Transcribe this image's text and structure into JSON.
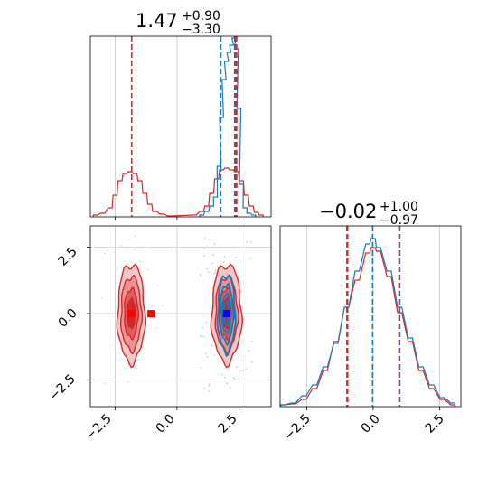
{
  "colors": {
    "series_a": "#1f77b4",
    "series_b": "#d62728",
    "grid": "#c8c8c8",
    "marker_a": "#0000ff",
    "marker_b": "#ff0000"
  },
  "titles": [
    {
      "median": "1.47",
      "upper": "+0.90",
      "lower": "−3.30"
    },
    {
      "median": "−0.02",
      "upper": "+1.00",
      "lower": "−0.97"
    }
  ],
  "chart_data": [
    {
      "type": "histogram",
      "panel": "param-1-marginal",
      "xlim": [
        -3.5,
        3.8
      ],
      "grid": true,
      "quantile_lines": {
        "series_a": [
          1.77,
          2.37
        ],
        "series_b": [
          -1.83,
          2.33,
          2.41
        ]
      },
      "series": [
        {
          "color_key": "series_a",
          "bins": [
            {
              "x": 1.0,
              "y": 0.01
            },
            {
              "x": 1.2,
              "y": 0.03
            },
            {
              "x": 1.4,
              "y": 0.06
            },
            {
              "x": 1.55,
              "y": 0.11
            },
            {
              "x": 1.7,
              "y": 0.28
            },
            {
              "x": 1.8,
              "y": 0.55
            },
            {
              "x": 1.9,
              "y": 0.76
            },
            {
              "x": 2.0,
              "y": 0.86
            },
            {
              "x": 2.1,
              "y": 0.91
            },
            {
              "x": 2.2,
              "y": 0.95
            },
            {
              "x": 2.3,
              "y": 0.99
            },
            {
              "x": 2.4,
              "y": 0.93
            },
            {
              "x": 2.5,
              "y": 0.6
            },
            {
              "x": 2.6,
              "y": 0.18
            },
            {
              "x": 2.75,
              "y": 0.05
            },
            {
              "x": 2.9,
              "y": 0.02
            },
            {
              "x": 3.1,
              "y": 0.01
            }
          ]
        },
        {
          "color_key": "series_b",
          "bins": [
            {
              "x": -3.3,
              "y": 0.01
            },
            {
              "x": -3.0,
              "y": 0.02
            },
            {
              "x": -2.7,
              "y": 0.05
            },
            {
              "x": -2.5,
              "y": 0.12
            },
            {
              "x": -2.3,
              "y": 0.2
            },
            {
              "x": -2.1,
              "y": 0.24
            },
            {
              "x": -1.9,
              "y": 0.25
            },
            {
              "x": -1.7,
              "y": 0.24
            },
            {
              "x": -1.5,
              "y": 0.2
            },
            {
              "x": -1.3,
              "y": 0.13
            },
            {
              "x": -1.1,
              "y": 0.07
            },
            {
              "x": -0.9,
              "y": 0.03
            },
            {
              "x": -0.6,
              "y": 0.015
            },
            {
              "x": -0.3,
              "y": 0.005
            },
            {
              "x": 0.7,
              "y": 0.01
            },
            {
              "x": 1.0,
              "y": 0.03
            },
            {
              "x": 1.2,
              "y": 0.06
            },
            {
              "x": 1.4,
              "y": 0.13
            },
            {
              "x": 1.6,
              "y": 0.21
            },
            {
              "x": 1.8,
              "y": 0.26
            },
            {
              "x": 2.0,
              "y": 0.27
            },
            {
              "x": 2.2,
              "y": 0.26
            },
            {
              "x": 2.4,
              "y": 0.25
            },
            {
              "x": 2.6,
              "y": 0.2
            },
            {
              "x": 2.8,
              "y": 0.12
            },
            {
              "x": 3.0,
              "y": 0.06
            },
            {
              "x": 3.2,
              "y": 0.025
            },
            {
              "x": 3.4,
              "y": 0.01
            }
          ]
        }
      ]
    },
    {
      "type": "contour",
      "panel": "param-1-vs-param-2",
      "xlim": [
        -3.5,
        3.8
      ],
      "ylim": [
        -3.5,
        3.3
      ],
      "xticks": [
        "−2.5",
        "0.0",
        "2.5"
      ],
      "yticks": [
        "−2.5",
        "0.0",
        "2.5"
      ],
      "grid": true,
      "series": [
        {
          "color_key": "series_a",
          "marker_key": "marker_a",
          "center": [
            2.0,
            0.0
          ],
          "spread": [
            0.35,
            1.45
          ],
          "levels": [
            1.0,
            0.75,
            0.5,
            0.3
          ]
        },
        {
          "color_key": "series_b",
          "marker_key": "marker_b",
          "center": [
            -1.85,
            0.0
          ],
          "spread": [
            0.55,
            1.85
          ],
          "levels": [
            1.0,
            0.75,
            0.5,
            0.3
          ]
        },
        {
          "color_key": "series_b",
          "marker_key": "marker_b",
          "center": [
            2.0,
            0.0
          ],
          "spread": [
            0.6,
            1.85
          ],
          "levels": [
            1.0,
            0.75,
            0.5,
            0.3
          ]
        }
      ],
      "extra_markers": [
        {
          "color_key": "marker_b",
          "x": -1.05,
          "y": 0.0
        }
      ]
    },
    {
      "type": "histogram",
      "panel": "param-2-marginal",
      "xlim": [
        -3.5,
        3.3
      ],
      "xticks": [
        "−2.5",
        "0.0",
        "2.5"
      ],
      "grid": true,
      "quantile_lines": {
        "series_a": [
          -0.99,
          -0.02,
          1.0
        ],
        "series_b": [
          -0.96,
          0.97
        ]
      },
      "series": [
        {
          "color_key": "series_a",
          "bins": [
            {
              "x": -3.4,
              "y": 0.01
            },
            {
              "x": -3.0,
              "y": 0.02
            },
            {
              "x": -2.6,
              "y": 0.06
            },
            {
              "x": -2.2,
              "y": 0.12
            },
            {
              "x": -1.8,
              "y": 0.22
            },
            {
              "x": -1.4,
              "y": 0.35
            },
            {
              "x": -1.0,
              "y": 0.55
            },
            {
              "x": -0.6,
              "y": 0.75
            },
            {
              "x": -0.2,
              "y": 0.9
            },
            {
              "x": 0.0,
              "y": 0.93
            },
            {
              "x": 0.2,
              "y": 0.88
            },
            {
              "x": 0.6,
              "y": 0.75
            },
            {
              "x": 1.0,
              "y": 0.55
            },
            {
              "x": 1.4,
              "y": 0.38
            },
            {
              "x": 1.8,
              "y": 0.22
            },
            {
              "x": 2.2,
              "y": 0.12
            },
            {
              "x": 2.6,
              "y": 0.05
            },
            {
              "x": 3.0,
              "y": 0.02
            }
          ]
        },
        {
          "color_key": "series_b",
          "bins": [
            {
              "x": -3.4,
              "y": 0.01
            },
            {
              "x": -3.0,
              "y": 0.015
            },
            {
              "x": -2.6,
              "y": 0.04
            },
            {
              "x": -2.2,
              "y": 0.1
            },
            {
              "x": -1.8,
              "y": 0.2
            },
            {
              "x": -1.4,
              "y": 0.36
            },
            {
              "x": -1.0,
              "y": 0.55
            },
            {
              "x": -0.6,
              "y": 0.7
            },
            {
              "x": -0.2,
              "y": 0.85
            },
            {
              "x": 0.0,
              "y": 0.88
            },
            {
              "x": 0.2,
              "y": 0.86
            },
            {
              "x": 0.6,
              "y": 0.72
            },
            {
              "x": 1.0,
              "y": 0.52
            },
            {
              "x": 1.4,
              "y": 0.36
            },
            {
              "x": 1.8,
              "y": 0.2
            },
            {
              "x": 2.2,
              "y": 0.1
            },
            {
              "x": 2.6,
              "y": 0.04
            },
            {
              "x": 3.0,
              "y": 0.01
            }
          ]
        }
      ]
    }
  ]
}
